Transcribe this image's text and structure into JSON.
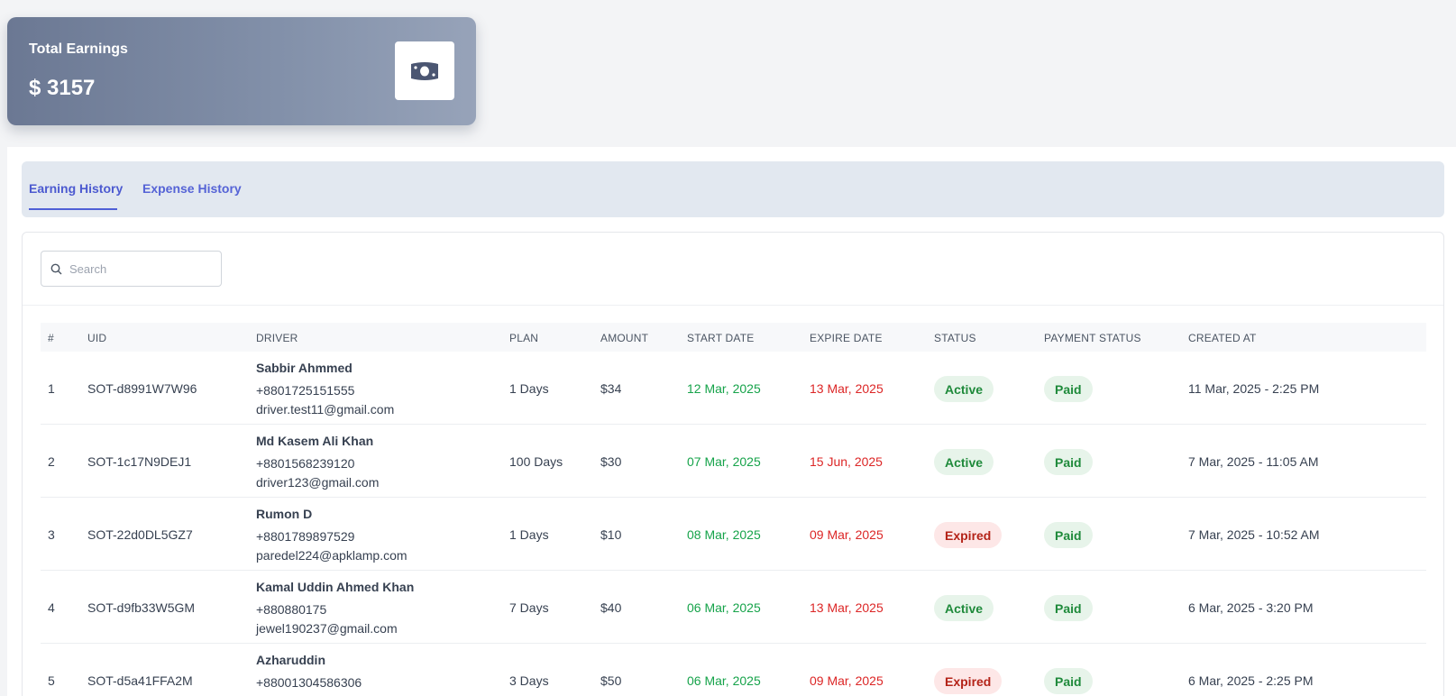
{
  "earnings": {
    "title": "Total Earnings",
    "value": "$ 3157",
    "icon": "money-bill-icon"
  },
  "tabs": [
    {
      "label": "Earning History",
      "active": true
    },
    {
      "label": "Expense History",
      "active": false
    }
  ],
  "search": {
    "placeholder": "Search",
    "value": ""
  },
  "table": {
    "headers": [
      "#",
      "UID",
      "DRIVER",
      "PLAN",
      "AMOUNT",
      "START DATE",
      "EXPIRE DATE",
      "STATUS",
      "PAYMENT STATUS",
      "CREATED AT"
    ],
    "rows": [
      {
        "num": "1",
        "uid": "SOT-d8991W7W96",
        "name": "Sabbir Ahmmed",
        "phone": "+8801725151555",
        "email": "driver.test11@gmail.com",
        "plan": "1 Days",
        "amount": "$34",
        "start": "12 Mar, 2025",
        "expire": "13 Mar, 2025",
        "status": "Active",
        "payment": "Paid",
        "created": "11 Mar, 2025 - 2:25 PM"
      },
      {
        "num": "2",
        "uid": "SOT-1c17N9DEJ1",
        "name": "Md Kasem Ali Khan",
        "phone": "+8801568239120",
        "email": "driver123@gmail.com",
        "plan": "100 Days",
        "amount": "$30",
        "start": "07 Mar, 2025",
        "expire": "15 Jun, 2025",
        "status": "Active",
        "payment": "Paid",
        "created": "7 Mar, 2025 - 11:05 AM"
      },
      {
        "num": "3",
        "uid": "SOT-22d0DL5GZ7",
        "name": "Rumon D",
        "phone": "+8801789897529",
        "email": "paredel224@apklamp.com",
        "plan": "1 Days",
        "amount": "$10",
        "start": "08 Mar, 2025",
        "expire": "09 Mar, 2025",
        "status": "Expired",
        "payment": "Paid",
        "created": "7 Mar, 2025 - 10:52 AM"
      },
      {
        "num": "4",
        "uid": "SOT-d9fb33W5GM",
        "name": "Kamal Uddin Ahmed Khan",
        "phone": "+880880175",
        "email": "jewel190237@gmail.com",
        "plan": "7 Days",
        "amount": "$40",
        "start": "06 Mar, 2025",
        "expire": "13 Mar, 2025",
        "status": "Active",
        "payment": "Paid",
        "created": "6 Mar, 2025 - 3:20 PM"
      },
      {
        "num": "5",
        "uid": "SOT-d5a41FFA2M",
        "name": "Azharuddin",
        "phone": "+88001304586306",
        "email": "",
        "plan": "3 Days",
        "amount": "$50",
        "start": "06 Mar, 2025",
        "expire": "09 Mar, 2025",
        "status": "Expired",
        "payment": "Paid",
        "created": "6 Mar, 2025 - 2:25 PM"
      }
    ]
  }
}
